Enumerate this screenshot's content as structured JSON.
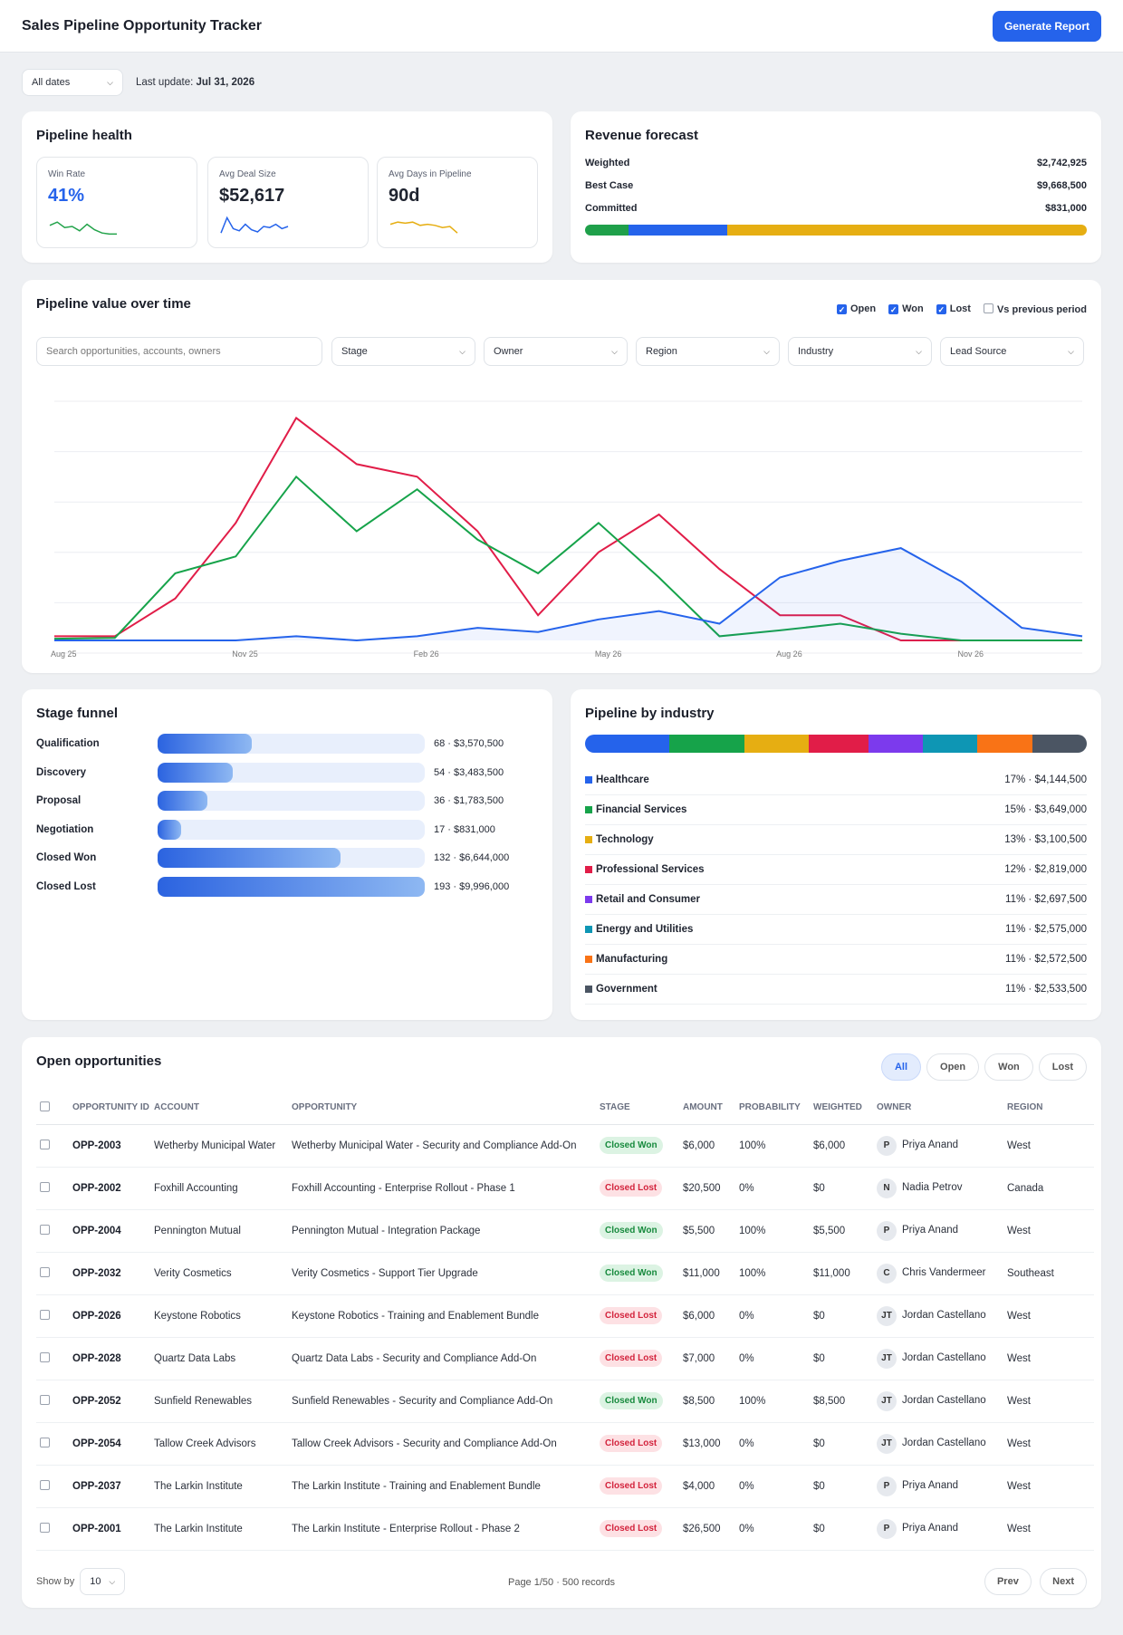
{
  "header": {
    "title": "Sales Pipeline Opportunity Tracker",
    "generate_label": "Generate Report"
  },
  "filter": {
    "date_range": "All dates",
    "last_update_label": "Last update:",
    "last_update_value": "Jul 31, 2026"
  },
  "health": {
    "title": "Pipeline health",
    "kpis": [
      {
        "label": "Win Rate",
        "value": "41%",
        "color": "#2563eb",
        "spark": [
          0.55,
          0.7,
          0.45,
          0.5,
          0.3,
          0.6,
          0.35,
          0.2,
          0.15,
          0.15
        ]
      },
      {
        "label": "Avg Deal Size",
        "value": "$52,617",
        "color": "#1b1f2a",
        "spark": [
          0.2,
          0.9,
          0.4,
          0.3,
          0.6,
          0.35,
          0.25,
          0.5,
          0.45,
          0.6,
          0.4,
          0.5
        ]
      },
      {
        "label": "Avg Days in Pipeline",
        "value": "90d",
        "color": "#1b1f2a",
        "spark": [
          0.6,
          0.7,
          0.65,
          0.7,
          0.55,
          0.6,
          0.55,
          0.45,
          0.5,
          0.2
        ]
      }
    ],
    "spark_colors": [
      "#22a34a",
      "#2563eb",
      "#e6ae12"
    ]
  },
  "forecast": {
    "title": "Revenue forecast",
    "rows": [
      {
        "label": "Weighted",
        "value": "$2,742,925"
      },
      {
        "label": "Best Case",
        "value": "$9,668,500"
      },
      {
        "label": "Committed",
        "value": "$831,000"
      }
    ],
    "bar": [
      {
        "share": 0.086,
        "color": "#1fa04a"
      },
      {
        "share": 0.198,
        "color": "#2563eb"
      },
      {
        "share": 0.716,
        "color": "#e6ae12"
      }
    ]
  },
  "over_time": {
    "title": "Pipeline value over time",
    "toggles": [
      {
        "label": "Open",
        "checked": true
      },
      {
        "label": "Won",
        "checked": true
      },
      {
        "label": "Lost",
        "checked": true
      },
      {
        "label": "Vs previous period",
        "checked": false
      }
    ],
    "search_placeholder": "Search opportunities, accounts, owners",
    "filters": [
      "Stage",
      "Owner",
      "Region",
      "Industry",
      "Lead Source"
    ]
  },
  "chart_data": {
    "type": "line",
    "x": [
      "Aug 25",
      "Sep 25",
      "Oct 25",
      "Nov 25",
      "Dec 25",
      "Jan 26",
      "Feb 26",
      "Mar 26",
      "Apr 26",
      "May 26",
      "Jun 26",
      "Jul 26",
      "Aug 26",
      "Sep 26",
      "Oct 26",
      "Nov 26",
      "Dec 26",
      "Jan 27"
    ],
    "tick_labels": [
      "Aug 25",
      "Nov 25",
      "Feb 26",
      "May 26",
      "Aug 26",
      "Nov 26"
    ],
    "series": [
      {
        "color": "#e11d48",
        "values": [
          0.05,
          0.05,
          0.5,
          1.4,
          2.65,
          2.1,
          1.95,
          1.3,
          0.3,
          1.05,
          1.5,
          0.85,
          0.3,
          0.3,
          0,
          0,
          0,
          0
        ]
      },
      {
        "color": "#16a34a",
        "values": [
          0.02,
          0.03,
          0.8,
          1.0,
          1.95,
          1.3,
          1.8,
          1.2,
          0.8,
          1.4,
          0.75,
          0.05,
          0.12,
          0.2,
          0.08,
          0,
          0,
          0
        ]
      },
      {
        "color": "#2563eb",
        "values": [
          0,
          0,
          0,
          0,
          0.05,
          0,
          0.05,
          0.15,
          0.1,
          0.25,
          0.35,
          0.2,
          0.75,
          0.95,
          1.1,
          0.7,
          0.15,
          0.05
        ]
      }
    ],
    "ylim": [
      0,
      3
    ],
    "grid": true
  },
  "funnel": {
    "title": "Stage funnel",
    "stages": [
      {
        "name": "Qualification",
        "count": 68,
        "info": "68 · $3,570,500"
      },
      {
        "name": "Discovery",
        "count": 54,
        "info": "54 · $3,483,500"
      },
      {
        "name": "Proposal",
        "count": 36,
        "info": "36 · $1,783,500"
      },
      {
        "name": "Negotiation",
        "count": 17,
        "info": "17 · $831,000"
      },
      {
        "name": "Closed Won",
        "count": 132,
        "info": "132 · $6,644,000"
      },
      {
        "name": "Closed Lost",
        "count": 193,
        "info": "193 · $9,996,000"
      }
    ],
    "max": 193
  },
  "industry": {
    "title": "Pipeline by industry",
    "rows": [
      {
        "name": "Healthcare",
        "info": "17% · $4,144,500",
        "share": 17,
        "color": "#2563eb"
      },
      {
        "name": "Financial Services",
        "info": "15% · $3,649,000",
        "share": 15,
        "color": "#16a34a"
      },
      {
        "name": "Technology",
        "info": "13% · $3,100,500",
        "share": 13,
        "color": "#e6ae12"
      },
      {
        "name": "Professional Services",
        "info": "12% · $2,819,000",
        "share": 12,
        "color": "#e11d48"
      },
      {
        "name": "Retail and Consumer",
        "info": "11% · $2,697,500",
        "share": 11,
        "color": "#7c3aed"
      },
      {
        "name": "Energy and Utilities",
        "info": "11% · $2,575,000",
        "share": 11,
        "color": "#0e96b4"
      },
      {
        "name": "Manufacturing",
        "info": "11% · $2,572,500",
        "share": 11,
        "color": "#f97316"
      },
      {
        "name": "Government",
        "info": "11% · $2,533,500",
        "share": 11,
        "color": "#4b5563"
      }
    ]
  },
  "opps": {
    "title": "Open opportunities",
    "chips": [
      {
        "label": "All",
        "active": true
      },
      {
        "label": "Open"
      },
      {
        "label": "Won"
      },
      {
        "label": "Lost"
      }
    ],
    "columns": [
      "OPPORTUNITY ID",
      "ACCOUNT",
      "OPPORTUNITY",
      "STAGE",
      "AMOUNT",
      "PROBABILITY",
      "WEIGHTED",
      "OWNER",
      "REGION"
    ],
    "rows": [
      {
        "id": "OPP-2003",
        "account": "Wetherby Municipal Water",
        "opp": "Wetherby Municipal Water - Security and Compliance Add-On",
        "stage": "Closed Won",
        "amount": "$6,000",
        "prob": "100%",
        "weighted": "$6,000",
        "initials": "P",
        "owner": "Priya Anand",
        "region": "West"
      },
      {
        "id": "OPP-2002",
        "account": "Foxhill Accounting",
        "opp": "Foxhill Accounting - Enterprise Rollout - Phase 1",
        "stage": "Closed Lost",
        "amount": "$20,500",
        "prob": "0%",
        "weighted": "$0",
        "initials": "N",
        "owner": "Nadia Petrov",
        "region": "Canada"
      },
      {
        "id": "OPP-2004",
        "account": "Pennington Mutual",
        "opp": "Pennington Mutual - Integration Package",
        "stage": "Closed Won",
        "amount": "$5,500",
        "prob": "100%",
        "weighted": "$5,500",
        "initials": "P",
        "owner": "Priya Anand",
        "region": "West"
      },
      {
        "id": "OPP-2032",
        "account": "Verity Cosmetics",
        "opp": "Verity Cosmetics - Support Tier Upgrade",
        "stage": "Closed Won",
        "amount": "$11,000",
        "prob": "100%",
        "weighted": "$11,000",
        "initials": "C",
        "owner": "Chris Vandermeer",
        "region": "Southeast"
      },
      {
        "id": "OPP-2026",
        "account": "Keystone Robotics",
        "opp": "Keystone Robotics - Training and Enablement Bundle",
        "stage": "Closed Lost",
        "amount": "$6,000",
        "prob": "0%",
        "weighted": "$0",
        "initials": "JT",
        "owner": "Jordan Castellano",
        "region": "West"
      },
      {
        "id": "OPP-2028",
        "account": "Quartz Data Labs",
        "opp": "Quartz Data Labs - Security and Compliance Add-On",
        "stage": "Closed Lost",
        "amount": "$7,000",
        "prob": "0%",
        "weighted": "$0",
        "initials": "JT",
        "owner": "Jordan Castellano",
        "region": "West"
      },
      {
        "id": "OPP-2052",
        "account": "Sunfield Renewables",
        "opp": "Sunfield Renewables - Security and Compliance Add-On",
        "stage": "Closed Won",
        "amount": "$8,500",
        "prob": "100%",
        "weighted": "$8,500",
        "initials": "JT",
        "owner": "Jordan Castellano",
        "region": "West"
      },
      {
        "id": "OPP-2054",
        "account": "Tallow Creek Advisors",
        "opp": "Tallow Creek Advisors - Security and Compliance Add-On",
        "stage": "Closed Lost",
        "amount": "$13,000",
        "prob": "0%",
        "weighted": "$0",
        "initials": "JT",
        "owner": "Jordan Castellano",
        "region": "West"
      },
      {
        "id": "OPP-2037",
        "account": "The Larkin Institute",
        "opp": "The Larkin Institute - Training and Enablement Bundle",
        "stage": "Closed Lost",
        "amount": "$4,000",
        "prob": "0%",
        "weighted": "$0",
        "initials": "P",
        "owner": "Priya Anand",
        "region": "West"
      },
      {
        "id": "OPP-2001",
        "account": "The Larkin Institute",
        "opp": "The Larkin Institute - Enterprise Rollout - Phase 2",
        "stage": "Closed Lost",
        "amount": "$26,500",
        "prob": "0%",
        "weighted": "$0",
        "initials": "P",
        "owner": "Priya Anand",
        "region": "West"
      }
    ],
    "show_by_label": "Show by",
    "show_by_value": "10",
    "page_info": "Page 1/50 · 500 records",
    "prev": "Prev",
    "next": "Next"
  }
}
